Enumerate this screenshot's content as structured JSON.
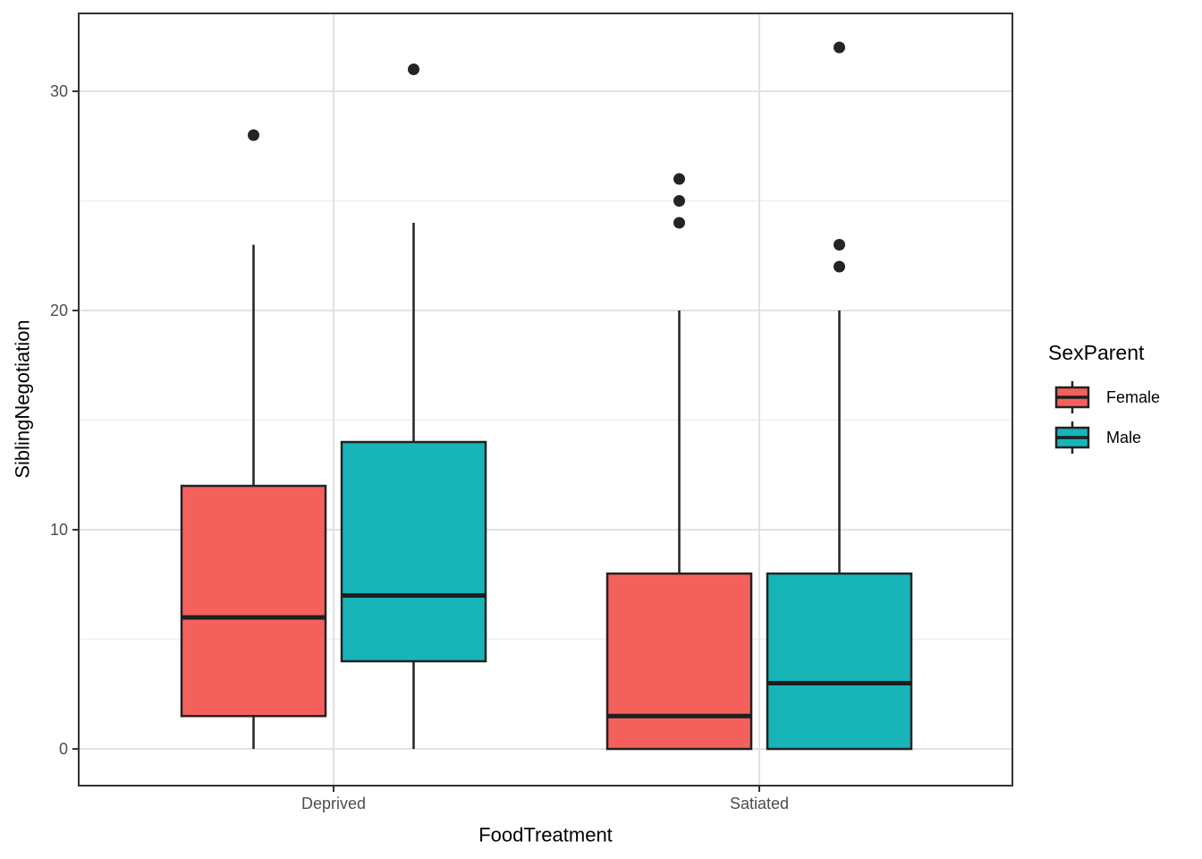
{
  "chart_data": {
    "type": "boxplot",
    "title": "",
    "xlabel": "FoodTreatment",
    "ylabel": "SiblingNegotiation",
    "categories": [
      "Deprived",
      "Satiated"
    ],
    "y_ticks": [
      0,
      10,
      20,
      30
    ],
    "y_minor_ticks": [
      5,
      15,
      25
    ],
    "ylim": [
      -1.6,
      33.5
    ],
    "grid": "on",
    "legend": {
      "title": "SexParent",
      "position": "right"
    },
    "series": [
      {
        "name": "Female",
        "color": "#F4615C",
        "boxes": [
          {
            "category": "Deprived",
            "whisker_low": 0,
            "q1": 1.5,
            "median": 6,
            "q3": 12,
            "whisker_high": 23,
            "outliers": [
              28
            ]
          },
          {
            "category": "Satiated",
            "whisker_low": 0,
            "q1": 0,
            "median": 1.5,
            "q3": 8,
            "whisker_high": 20,
            "outliers": [
              24,
              25,
              26
            ]
          }
        ]
      },
      {
        "name": "Male",
        "color": "#17B4B8",
        "boxes": [
          {
            "category": "Deprived",
            "whisker_low": 0,
            "q1": 4,
            "median": 7,
            "q3": 14,
            "whisker_high": 24,
            "outliers": [
              31
            ]
          },
          {
            "category": "Satiated",
            "whisker_low": 0,
            "q1": 0,
            "median": 3,
            "q3": 8,
            "whisker_high": 20,
            "outliers": [
              22,
              23,
              32
            ]
          }
        ]
      }
    ],
    "style": {
      "panel_background": "#FFFFFF",
      "panel_border": "#333333",
      "grid_major": "#E2E2E2",
      "grid_minor": "#F0F0F0",
      "box_outline": "#222222",
      "median_color": "#1E1E1E",
      "outlier_color": "#242424",
      "tick_mark_color": "#333333",
      "tick_label_color": "#4D4D4D",
      "axis_title_color": "#000000",
      "legend_text_color": "#000000"
    }
  }
}
